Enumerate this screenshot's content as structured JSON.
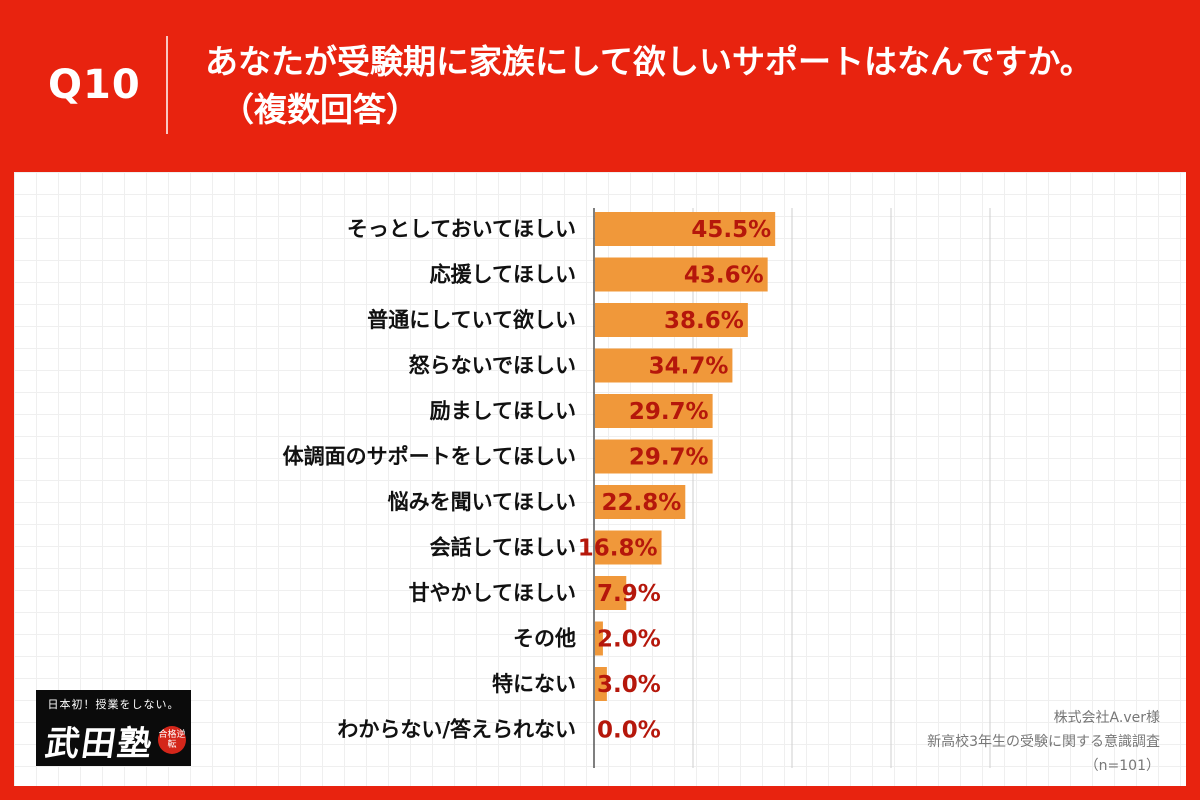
{
  "header": {
    "question_number": "Q10",
    "question_line1": "あなたが受験期に家族にして欲しいサポートはなんですか。",
    "question_line2": "（複数回答）"
  },
  "source": {
    "company": "株式会社A.ver様",
    "survey": "新高校3年生の受験に関する意識調査",
    "sample": "（n=101）"
  },
  "logo": {
    "tagline": "日本初！授業をしない。",
    "name": "武田塾",
    "seal_text": "合格逆転"
  },
  "colors": {
    "background": "#e8230f",
    "bar": "#f0983a",
    "value_label": "#b5170b"
  },
  "chart_data": {
    "type": "bar",
    "orientation": "horizontal",
    "categories": [
      "そっとしておいてほしい",
      "応援してほしい",
      "普通にしていて欲しい",
      "怒らないでほしい",
      "励ましてほしい",
      "体調面のサポートをしてほしい",
      "悩みを聞いてほしい",
      "会話してほしい",
      "甘やかしてほしい",
      "その他",
      "特にない",
      "わからない/答えられない"
    ],
    "values": [
      45.5,
      43.6,
      38.6,
      34.7,
      29.7,
      29.7,
      22.8,
      16.8,
      7.9,
      2.0,
      3.0,
      0.0
    ],
    "value_labels": [
      "45.5%",
      "43.6%",
      "38.6%",
      "34.7%",
      "29.7%",
      "29.7%",
      "22.8%",
      "16.8%",
      "7.9%",
      "2.0%",
      "3.0%",
      "0.0%"
    ],
    "xlim": [
      0,
      100
    ],
    "gridlines": [
      0,
      25,
      50,
      75,
      100
    ],
    "legend": "none"
  }
}
